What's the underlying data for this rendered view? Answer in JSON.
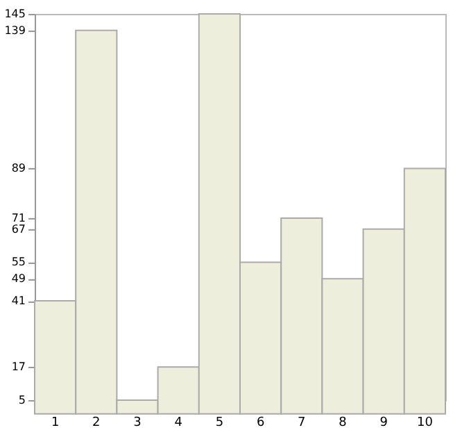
{
  "chart_data": {
    "type": "bar",
    "categories": [
      "1",
      "2",
      "3",
      "4",
      "5",
      "6",
      "7",
      "8",
      "9",
      "10"
    ],
    "values": [
      41,
      139,
      5,
      17,
      145,
      55,
      71,
      49,
      67,
      89
    ],
    "color": "#eeeedd",
    "ylim": [
      5,
      145
    ],
    "yticks": [
      5,
      17,
      41,
      49,
      55,
      67,
      71,
      89,
      139,
      145
    ],
    "grid": false
  }
}
